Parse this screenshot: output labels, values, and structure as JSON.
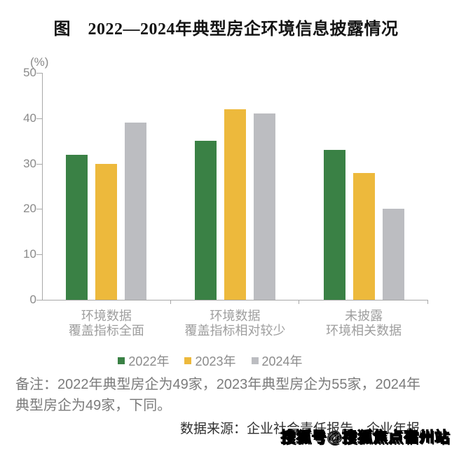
{
  "chart_data": {
    "type": "bar",
    "title": "图　2022—2024年典型房企环境信息披露情况",
    "unit_label": "(%)",
    "categories": [
      [
        "环境数据",
        "覆盖指标全面"
      ],
      [
        "环境数据",
        "覆盖指标相对较少"
      ],
      [
        "未披露",
        "环境相关数据"
      ]
    ],
    "series": [
      {
        "name": "2022年",
        "color": "#3A8145",
        "values": [
          32,
          35,
          33
        ]
      },
      {
        "name": "2023年",
        "color": "#EDB93C",
        "values": [
          30,
          42,
          28
        ]
      },
      {
        "name": "2024年",
        "color": "#BCBDC1",
        "values": [
          39,
          41,
          20
        ]
      }
    ],
    "ylim": [
      0,
      50
    ],
    "ytick_step": 10,
    "grid": false,
    "legend_position": "bottom"
  },
  "footer": {
    "note": "备注：2022年典型房企为49家，2023年典型房企为55家，2024年典型房企为49家，下同。",
    "source": "数据来源：企业社会责任报告、企业年报。"
  },
  "watermark": "搜狐号@搜狐焦点宿州站",
  "colors": {
    "bar_2022": "#3A8145",
    "bar_2023": "#EDB93C",
    "bar_2024": "#BCBDC1",
    "axis": "#A8A8A8"
  }
}
